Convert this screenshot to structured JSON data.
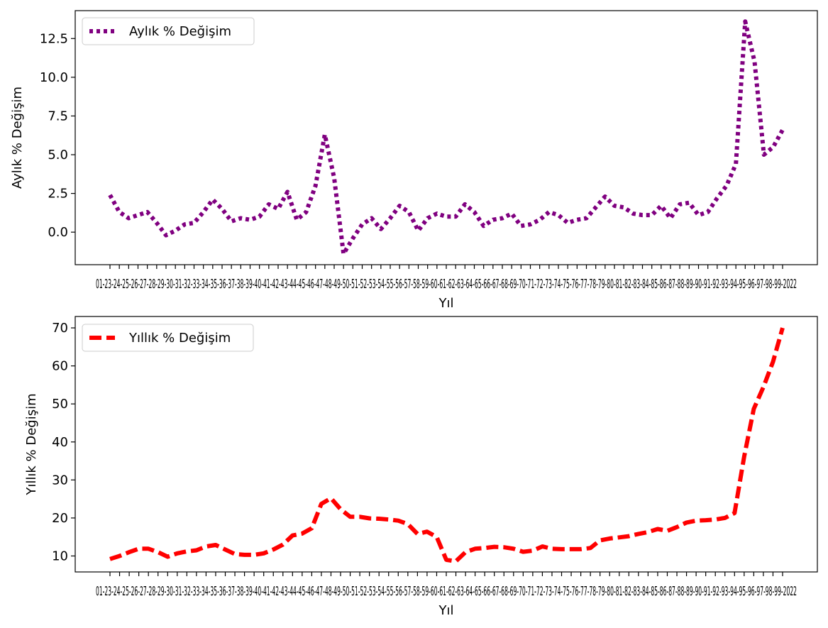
{
  "chart_data": [
    {
      "type": "line",
      "xlabel": "Yıl",
      "ylabel": "Aylık % Değişim",
      "x_tick_labels_text": "01-23-24-25-26-27-28-29-30-31-32-33-34-35-36-37-38-39-40-41-42-43-44-45-46-47-48-49-50-51-52-53-54-55-56-57-58-59-60-61-62-63-64-65-66-67-68-69-70-71-72-73-74-75-76-77-78-79-80-81-82-83-84-85-86-87-88-89-90-91-92-93-94-95-96-97-98-99-2022",
      "ylim": [
        -2.1,
        14.3
      ],
      "y_ticks": [
        0.0,
        2.5,
        5.0,
        7.5,
        10.0,
        12.5
      ],
      "y_tick_labels": [
        "0.0",
        "2.5",
        "5.0",
        "7.5",
        "10.0",
        "12.5"
      ],
      "legend_position": "top-left",
      "series": [
        {
          "name": "Aylık % Değişim",
          "color": "#800080",
          "line_style": "dotted",
          "values": [
            2.4,
            1.3,
            0.9,
            1.1,
            1.3,
            0.6,
            -0.2,
            0.1,
            0.5,
            0.6,
            1.3,
            2.1,
            1.5,
            0.7,
            0.9,
            0.8,
            1.0,
            1.8,
            1.5,
            2.6,
            0.8,
            1.3,
            3.0,
            6.3,
            3.5,
            -1.4,
            -0.4,
            0.5,
            0.9,
            0.2,
            0.9,
            1.7,
            1.3,
            0.1,
            0.9,
            1.2,
            1.0,
            1.0,
            1.8,
            1.3,
            0.4,
            0.8,
            0.9,
            1.2,
            0.4,
            0.5,
            0.8,
            1.3,
            1.1,
            0.6,
            0.8,
            0.9,
            1.6,
            2.3,
            1.7,
            1.6,
            1.2,
            1.1,
            1.1,
            1.7,
            0.9,
            1.8,
            1.9,
            1.1,
            1.3,
            2.2,
            3.0,
            4.4,
            13.6,
            11.0,
            5.0,
            5.5,
            6.6
          ]
        }
      ]
    },
    {
      "type": "line",
      "xlabel": "Yıl",
      "ylabel": "Yıllık % Değişim",
      "x_tick_labels_text": "01-23-24-25-26-27-28-29-30-31-32-33-34-35-36-37-38-39-40-41-42-43-44-45-46-47-48-49-50-51-52-53-54-55-56-57-58-59-60-61-62-63-64-65-66-67-68-69-70-71-72-73-74-75-76-77-78-79-80-81-82-83-84-85-86-87-88-89-90-91-92-93-94-95-96-97-98-99-2022",
      "ylim": [
        5.8,
        73.0
      ],
      "y_ticks": [
        10,
        20,
        30,
        40,
        50,
        60,
        70
      ],
      "y_tick_labels": [
        "10",
        "20",
        "30",
        "40",
        "50",
        "60",
        "70"
      ],
      "legend_position": "top-left",
      "series": [
        {
          "name": "Yıllık % Değişim",
          "color": "#ff0000",
          "line_style": "dashed",
          "values": [
            9.2,
            10.0,
            11.0,
            11.9,
            11.9,
            11.0,
            9.8,
            10.7,
            11.2,
            11.5,
            12.5,
            12.9,
            11.7,
            10.5,
            10.3,
            10.3,
            10.7,
            11.7,
            13.0,
            15.4,
            15.9,
            17.3,
            23.7,
            25.2,
            22.3,
            20.3,
            20.3,
            19.9,
            19.8,
            19.6,
            19.3,
            18.4,
            15.8,
            16.4,
            15.0,
            9.0,
            8.6,
            11.0,
            11.9,
            12.1,
            12.4,
            12.3,
            11.9,
            11.1,
            11.4,
            12.5,
            11.9,
            11.8,
            11.8,
            11.8,
            12.1,
            14.1,
            14.6,
            14.9,
            15.2,
            15.8,
            16.3,
            17.1,
            16.6,
            17.6,
            18.8,
            19.3,
            19.4,
            19.6,
            20.0,
            21.3,
            36.1,
            48.7,
            54.4,
            61.1,
            70.0
          ]
        }
      ]
    }
  ]
}
